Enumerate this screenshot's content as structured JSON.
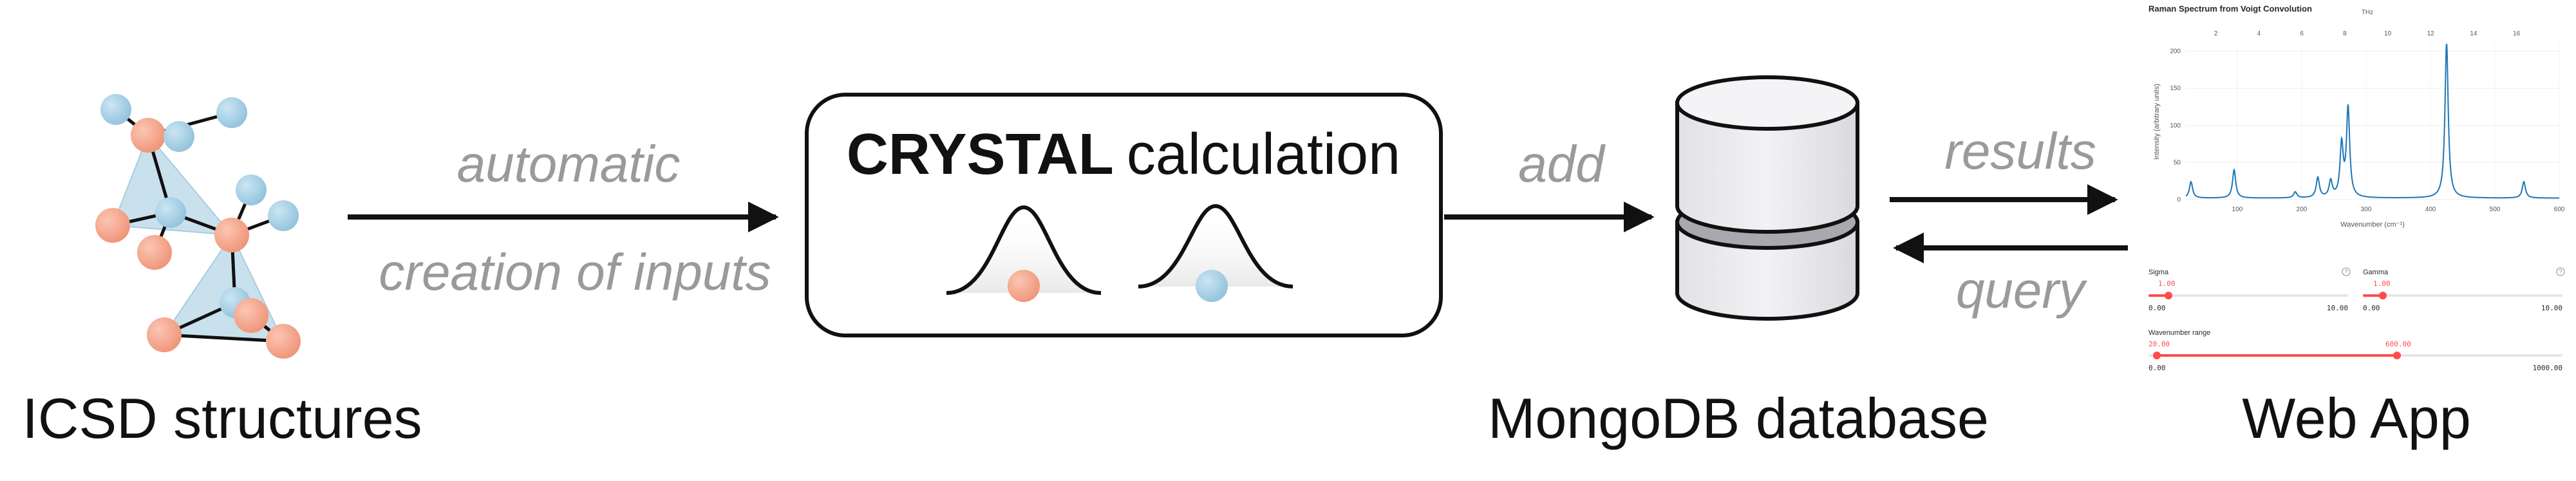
{
  "labels": {
    "icsd": "ICSD structures",
    "automatic": "automatic",
    "creation": "creation of inputs",
    "crystal_bold": "CRYSTAL",
    "crystal_rest": "calculation",
    "add": "add",
    "mongodb": "MongoDB database",
    "results": "results",
    "query": "query",
    "webapp": "Web App"
  },
  "colors": {
    "orange_atom": "#f5a58a",
    "blue_atom": "#a9d2e6",
    "tetra_fill": "#bfdcea",
    "arrow": "#111111",
    "flow_text": "#9a9a9a",
    "slider_red": "#ff4b4b"
  },
  "icons": {
    "structure": "crystal-structure-icon",
    "database": "database-icon",
    "gaussian": "gaussian-curve-icon"
  },
  "webapp": {
    "title": "Raman Spectrum from Voigt Convolution",
    "top_axis_title": "THz",
    "sliders": {
      "sigma": {
        "label": "Sigma",
        "value": "1.00",
        "min": "0.00",
        "max": "10.00"
      },
      "gamma": {
        "label": "Gamma",
        "value": "1.00",
        "min": "0.00",
        "max": "10.00"
      },
      "range": {
        "label": "Wavenumber range",
        "low": "20.00",
        "high": "600.00",
        "min": "0.00",
        "max": "1000.00"
      }
    }
  },
  "chart_data": {
    "type": "line",
    "title": "Raman Spectrum from Voigt Convolution",
    "xlabel": "Wavenumber (cm⁻¹)",
    "ylabel": "Intensity (arbitrary units)",
    "x2label": "THz",
    "xlim": [
      20,
      600
    ],
    "ylim": [
      0,
      210
    ],
    "x_ticks": [
      100,
      200,
      300,
      400,
      500,
      600
    ],
    "y_ticks": [
      0,
      50,
      100,
      150,
      200
    ],
    "x2_ticks": [
      2,
      4,
      6,
      8,
      10,
      12,
      14,
      16
    ],
    "peaks": [
      {
        "x": 28,
        "y": 22
      },
      {
        "x": 95,
        "y": 38
      },
      {
        "x": 190,
        "y": 8
      },
      {
        "x": 225,
        "y": 27
      },
      {
        "x": 245,
        "y": 22
      },
      {
        "x": 262,
        "y": 70
      },
      {
        "x": 272,
        "y": 120
      },
      {
        "x": 425,
        "y": 210
      },
      {
        "x": 545,
        "y": 22
      }
    ],
    "peak_width": 3,
    "baseline": 2
  }
}
